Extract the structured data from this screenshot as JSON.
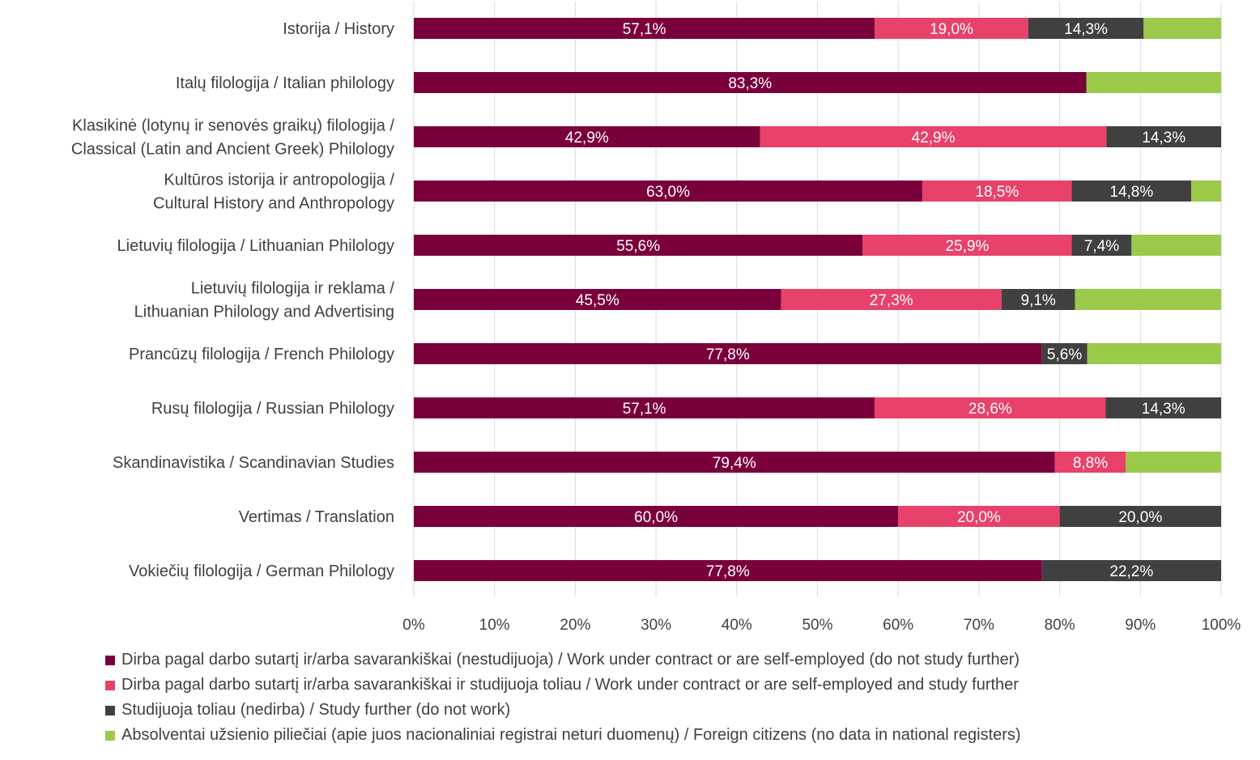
{
  "colors": {
    "s1": "#7a003c",
    "s2": "#e8416a",
    "s3": "#404040",
    "s4": "#9bc94a",
    "grid": "#d9d9d9",
    "text": "#404040"
  },
  "chart_data": {
    "type": "bar",
    "orientation": "horizontal",
    "stacked": true,
    "title": "",
    "xlabel": "",
    "ylabel": "",
    "xlim": [
      0,
      100
    ],
    "x_ticks": [
      "0%",
      "10%",
      "20%",
      "30%",
      "40%",
      "50%",
      "60%",
      "70%",
      "80%",
      "90%",
      "100%"
    ],
    "grid": "vertical",
    "legend_position": "bottom",
    "categories": [
      [
        "Istorija / History"
      ],
      [
        "Italų filologija / Italian philology"
      ],
      [
        "Klasikinė (lotynų ir senovės graikų) filologija /",
        "Classical (Latin and Ancient Greek) Philology"
      ],
      [
        "Kultūros istorija ir antropologija /",
        "Cultural History and Anthropology"
      ],
      [
        "Lietuvių filologija / Lithuanian Philology"
      ],
      [
        "Lietuvių filologija ir reklama /",
        "Lithuanian Philology and Advertising"
      ],
      [
        "Prancūzų filologija / French Philology"
      ],
      [
        "Rusų filologija / Russian Philology"
      ],
      [
        "Skandinavistika / Scandinavian Studies"
      ],
      [
        "Vertimas / Translation"
      ],
      [
        "Vokiečių filologija / German Philology"
      ]
    ],
    "series": [
      {
        "name": "Dirba pagal darbo sutartį ir/arba savarankiškai (nestudijuoja) / Work under contract or are self-employed (do not study further)",
        "color": "#7a003c",
        "values": [
          57.1,
          83.3,
          42.9,
          63.0,
          55.6,
          45.5,
          77.8,
          57.1,
          79.4,
          60.0,
          77.8
        ],
        "labels": [
          "57,1%",
          "83,3%",
          "42,9%",
          "63,0%",
          "55,6%",
          "45,5%",
          "77,8%",
          "57,1%",
          "79,4%",
          "60,0%",
          "77,8%"
        ]
      },
      {
        "name": "Dirba pagal darbo sutartį ir/arba savarankiškai  ir studijuoja toliau / Work under contract or are self-employed and study further",
        "color": "#e8416a",
        "values": [
          19.0,
          0,
          42.9,
          18.5,
          25.9,
          27.3,
          0,
          28.6,
          8.8,
          20.0,
          0
        ],
        "labels": [
          "19,0%",
          "",
          "42,9%",
          "18,5%",
          "25,9%",
          "27,3%",
          "",
          "28,6%",
          "8,8%",
          "20,0%",
          ""
        ]
      },
      {
        "name": "Studijuoja toliau (nedirba) / Study further (do not work)",
        "color": "#404040",
        "values": [
          14.3,
          0,
          14.3,
          14.8,
          7.4,
          9.1,
          5.6,
          14.3,
          0,
          20.0,
          22.2
        ],
        "labels": [
          "14,3%",
          "",
          "14,3%",
          "14,8%",
          "7,4%",
          "9,1%",
          "5,6%",
          "14,3%",
          "",
          "20,0%",
          "22,2%"
        ]
      },
      {
        "name": "Absolventai užsienio piliečiai (apie juos nacionaliniai registrai neturi duomenų) / Foreign citizens (no data in national registers)",
        "color": "#9bc94a",
        "values": [
          9.6,
          16.7,
          0,
          3.7,
          11.1,
          18.1,
          16.6,
          0,
          11.8,
          0,
          0
        ],
        "labels": [
          "",
          "",
          "",
          "",
          "",
          "",
          "",
          "",
          "",
          "",
          ""
        ]
      }
    ]
  }
}
